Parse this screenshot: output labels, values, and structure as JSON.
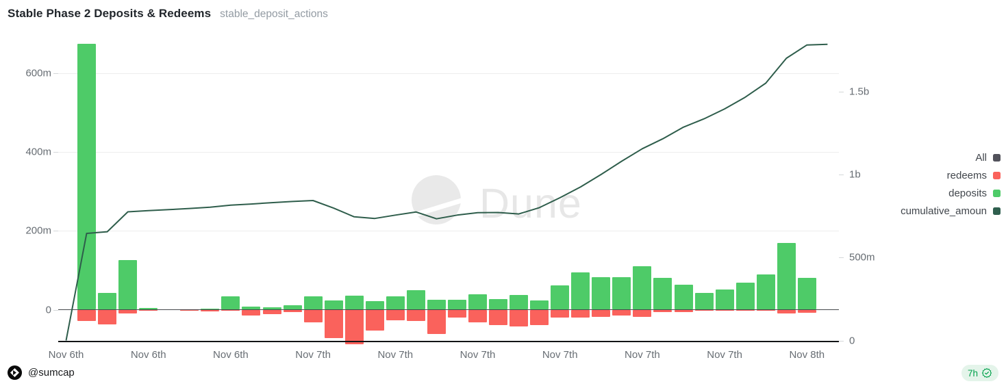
{
  "header": {
    "title": "Stable Phase 2 Deposits & Redeems",
    "query_name": "stable_deposit_actions"
  },
  "watermark": {
    "text": "Dune"
  },
  "legend": {
    "items": [
      {
        "label": "All",
        "color": "#52525b"
      },
      {
        "label": "redeems",
        "color": "#fa625c"
      },
      {
        "label": "deposits",
        "color": "#4ecb68"
      },
      {
        "label": "cumulative_amoun",
        "color": "#2f5f4e"
      }
    ]
  },
  "footer": {
    "author": "@sumcap",
    "badge_label": "7h"
  },
  "colors": {
    "deposits": "#4ecb68",
    "redeems": "#fa625c",
    "cumulative_line": "#2e5d4b",
    "badge_green": "#00a14b",
    "axis_text": "#676d73"
  },
  "chart_data": {
    "type": "bar",
    "title": "Stable Phase 2 Deposits & Redeems",
    "x_tick_labels": [
      "Nov 6th",
      "Nov 6th",
      "Nov 6th",
      "Nov 7th",
      "Nov 7th",
      "Nov 7th",
      "Nov 7th",
      "Nov 7th",
      "Nov 7th",
      "Nov 8th"
    ],
    "x_tick_slots": [
      0,
      4,
      8,
      12,
      16,
      20,
      24,
      28,
      32,
      36
    ],
    "num_slots": 38,
    "left_axis": {
      "tick_labels": [
        "0",
        "200m",
        "400m",
        "600m"
      ],
      "unit": "millions",
      "range": [
        -90,
        770
      ],
      "applies_to": [
        "deposits",
        "redeems"
      ]
    },
    "right_axis": {
      "tick_labels": [
        "0",
        "500m",
        "1b",
        "1.5b"
      ],
      "unit": "millions",
      "range": [
        0,
        1830
      ],
      "applies_to": [
        "cumulative_amount"
      ]
    },
    "grid": "horizontal",
    "legend_position": "right",
    "series": [
      {
        "name": "deposits",
        "type": "bar",
        "axis": "left",
        "color": "#4ecb68",
        "values": [
          0,
          675,
          43,
          126,
          5,
          0,
          1,
          2,
          33,
          7,
          6,
          11,
          33,
          24,
          35,
          21,
          33,
          49,
          26,
          26,
          39,
          27,
          37,
          23,
          61,
          94,
          83,
          83,
          111,
          80,
          64,
          43,
          52,
          69,
          89,
          169,
          80,
          0
        ]
      },
      {
        "name": "redeems",
        "type": "bar",
        "axis": "left",
        "color": "#fa625c",
        "values": [
          0,
          -27,
          -36,
          -8,
          -2,
          0,
          -1,
          -3,
          -2,
          -14,
          -10,
          -4,
          -30,
          -70,
          -86,
          -52,
          -26,
          -28,
          -61,
          -18,
          -31,
          -37,
          -41,
          -38,
          -18,
          -19,
          -16,
          -13,
          -16,
          -5,
          -5,
          -2,
          -1,
          -2,
          -2,
          -9,
          -7,
          0
        ]
      },
      {
        "name": "cumulative_amount",
        "type": "line",
        "axis": "right",
        "color": "#2e5d4b",
        "values": [
          0,
          645,
          655,
          775,
          782,
          788,
          795,
          803,
          815,
          822,
          830,
          837,
          843,
          797,
          745,
          735,
          755,
          774,
          733,
          755,
          770,
          771,
          762,
          800,
          860,
          925,
          1000,
          1080,
          1155,
          1215,
          1285,
          1335,
          1395,
          1465,
          1550,
          1700,
          1780,
          1784
        ]
      }
    ]
  }
}
